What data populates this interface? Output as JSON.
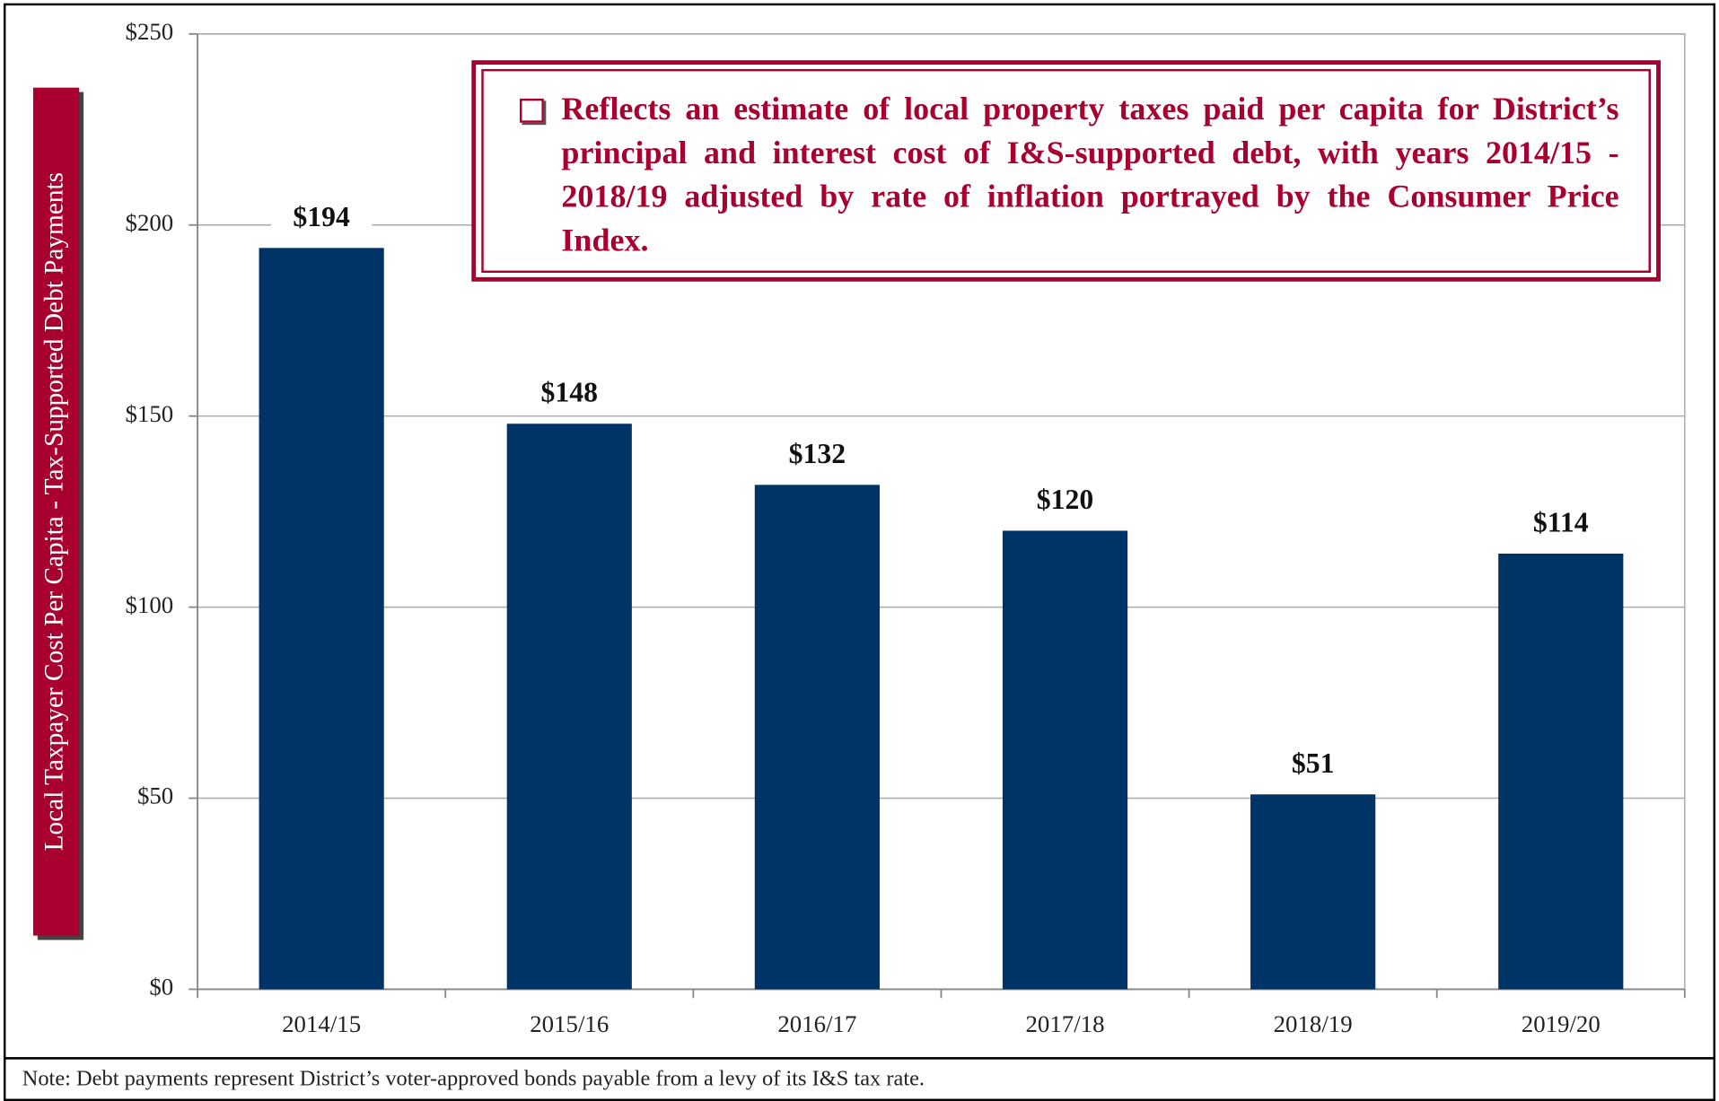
{
  "chart_data": {
    "type": "bar",
    "ylabel": "Local Taxpayer Cost Per Capita - Tax-Supported Debt Payments",
    "annotation": "Reflects an estimate of local property taxes paid per capita for District’s principal and interest cost of I&S-supported debt, with years 2014/15 - 2018/19 adjusted by rate of inflation portrayed by the Consumer Price Index.",
    "note": "Note: Debt payments represent District’s voter-approved bonds payable from a levy of its I&S tax rate.",
    "categories": [
      "2014/15",
      "2015/16",
      "2016/17",
      "2017/18",
      "2018/19",
      "2019/20"
    ],
    "values": [
      194,
      148,
      132,
      120,
      51,
      114
    ],
    "value_labels": [
      "$194",
      "$148",
      "$132",
      "$120",
      "$51",
      "$114"
    ],
    "color": "#003366",
    "ylim": [
      0,
      250
    ],
    "yticks": [
      {
        "value": 0,
        "label": "$0"
      },
      {
        "value": 50,
        "label": "$50"
      },
      {
        "value": 100,
        "label": "$100"
      },
      {
        "value": 150,
        "label": "$150"
      },
      {
        "value": 200,
        "label": "$200"
      },
      {
        "value": 250,
        "label": "$250"
      }
    ],
    "grid": true
  }
}
